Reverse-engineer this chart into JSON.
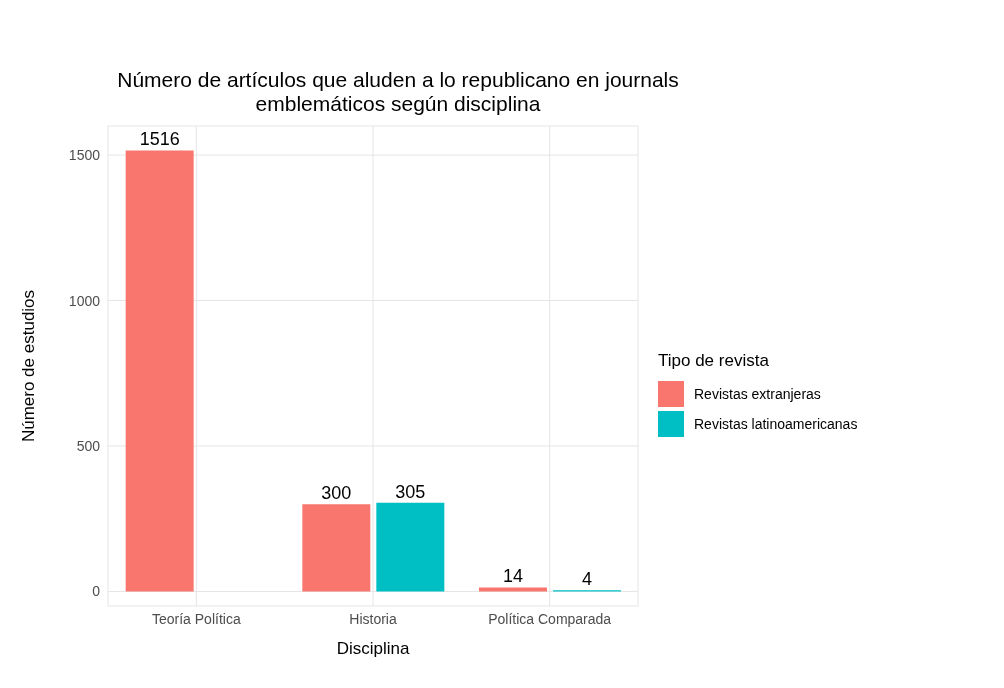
{
  "chart_data": {
    "type": "bar",
    "title": "Número de artículos que aluden a lo republicano en journals emblemáticos según disciplina",
    "xlabel": "Disciplina",
    "ylabel": "Número de estudios",
    "legend_title": "Tipo de revista",
    "categories": [
      "Teoría Política",
      "Historia",
      "Política Comparada"
    ],
    "series": [
      {
        "name": "Revistas extranjeras",
        "color": "#f8766d",
        "values": [
          1516,
          300,
          14
        ]
      },
      {
        "name": "Revistas latinoamericanas",
        "color": "#00bfc4",
        "values": [
          null,
          305,
          4
        ]
      }
    ],
    "ylim": [
      -50,
      1600
    ],
    "yticks": [
      0,
      500,
      1000,
      1500
    ],
    "grid": true,
    "legend": "right",
    "data_labels": true
  }
}
